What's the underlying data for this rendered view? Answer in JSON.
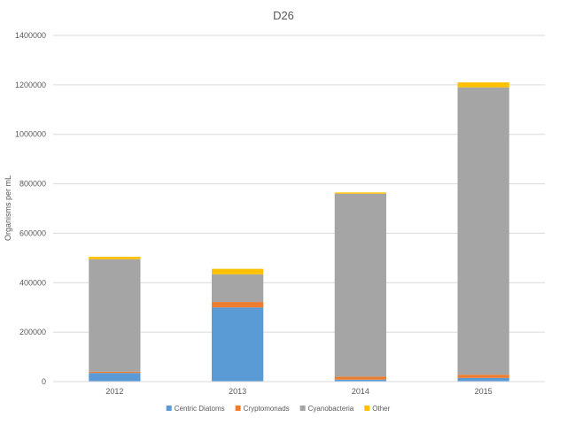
{
  "chart_data": {
    "type": "bar",
    "stacked": true,
    "title": "D26",
    "ylabel": "Organisms per mL",
    "xlabel": "",
    "categories": [
      "2012",
      "2013",
      "2014",
      "2015"
    ],
    "ylim": [
      0,
      1400000
    ],
    "yticks": [
      0,
      200000,
      400000,
      600000,
      800000,
      1000000,
      1200000,
      1400000
    ],
    "grid": true,
    "legend_position": "bottom",
    "series": [
      {
        "name": "Centric Diatoms",
        "color": "#5B9BD5",
        "values": [
          35000,
          300000,
          8000,
          15000
        ]
      },
      {
        "name": "Cryptomonads",
        "color": "#ED7D31",
        "values": [
          5000,
          22000,
          12000,
          13000
        ]
      },
      {
        "name": "Cyanobacteria",
        "color": "#A5A5A5",
        "values": [
          455000,
          112000,
          740000,
          1162000
        ]
      },
      {
        "name": "Other",
        "color": "#FFC000",
        "values": [
          10000,
          22000,
          5000,
          20000
        ]
      }
    ]
  }
}
